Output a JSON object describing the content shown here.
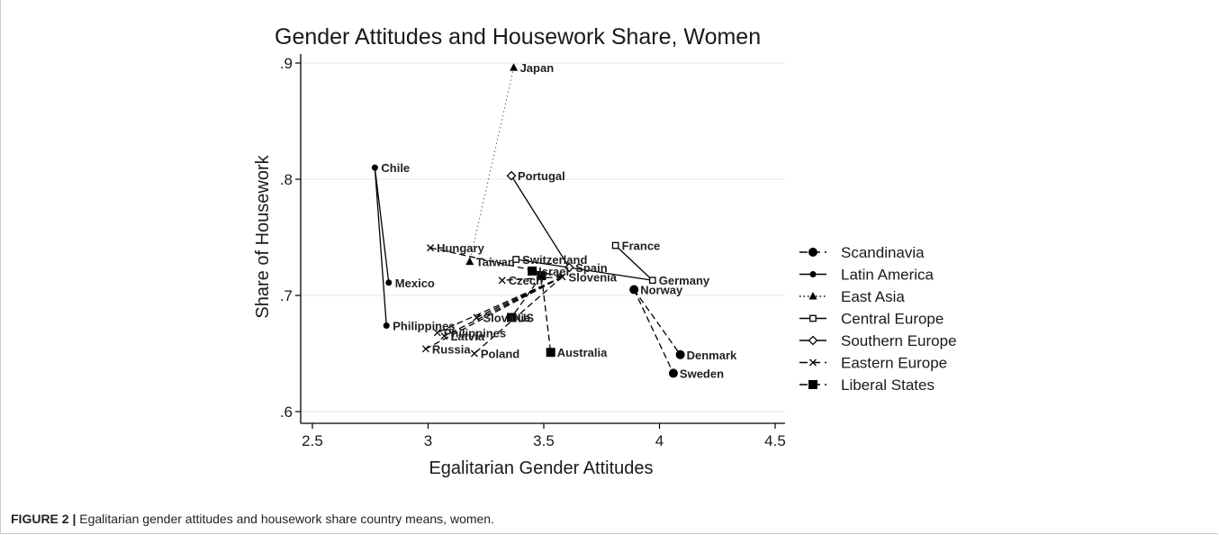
{
  "chart_data": {
    "type": "scatter",
    "title": "Gender Attitudes and Housework Share, Women",
    "xlabel": "Egalitarian Gender Attitudes",
    "ylabel": "Share of Housework",
    "xlim": [
      2.5,
      4.5
    ],
    "ylim": [
      0.6,
      0.9
    ],
    "xticks": [
      "2.5",
      "3",
      "3.5",
      "4",
      "4.5"
    ],
    "yticks": [
      ".6",
      ".7",
      ".8",
      ".9"
    ],
    "xtick_values": [
      2.5,
      3,
      3.5,
      4,
      4.5
    ],
    "ytick_values": [
      0.6,
      0.7,
      0.8,
      0.9
    ],
    "grid": "horizontal",
    "legend_position": "right",
    "series": [
      {
        "name": "Scandinavia",
        "marker": "circle-large",
        "line": "dash",
        "color": "#000000",
        "points": [
          {
            "label": "Norway",
            "x": 3.89,
            "y": 0.705
          },
          {
            "label": "Denmark",
            "x": 4.09,
            "y": 0.649
          },
          {
            "label": "Sweden",
            "x": 4.06,
            "y": 0.633
          }
        ],
        "lines": [
          [
            0,
            1
          ],
          [
            0,
            2
          ]
        ]
      },
      {
        "name": "Latin America",
        "marker": "circle-small",
        "line": "solid",
        "color": "#000000",
        "points": [
          {
            "label": "Chile",
            "x": 2.77,
            "y": 0.81
          },
          {
            "label": "Mexico",
            "x": 2.83,
            "y": 0.711
          },
          {
            "label": "Philippines",
            "x": 2.82,
            "y": 0.674
          }
        ],
        "lines": [
          [
            0,
            1
          ],
          [
            0,
            2
          ]
        ]
      },
      {
        "name": "East Asia",
        "marker": "triangle",
        "line": "dot",
        "color": "#000000",
        "points": [
          {
            "label": "Japan",
            "x": 3.37,
            "y": 0.896
          },
          {
            "label": "Taiwan",
            "x": 3.18,
            "y": 0.729
          }
        ],
        "lines": [
          [
            0,
            1
          ]
        ]
      },
      {
        "name": "Central Europe",
        "marker": "square-hollow",
        "line": "solid",
        "color": "#000000",
        "points": [
          {
            "label": "France",
            "x": 3.81,
            "y": 0.743
          },
          {
            "label": "Switzerland",
            "x": 3.38,
            "y": 0.731
          },
          {
            "label": "Germany",
            "x": 3.97,
            "y": 0.713
          }
        ],
        "lines": [
          [
            2,
            0
          ],
          [
            2,
            1
          ]
        ]
      },
      {
        "name": "Southern Europe",
        "marker": "diamond-hollow",
        "line": "solid",
        "color": "#000000",
        "points": [
          {
            "label": "Portugal",
            "x": 3.36,
            "y": 0.803
          },
          {
            "label": "Spain",
            "x": 3.61,
            "y": 0.724
          }
        ],
        "lines": [
          [
            0,
            1
          ]
        ]
      },
      {
        "name": "Eastern Europe",
        "marker": "x",
        "line": "dash",
        "color": "#000000",
        "points": [
          {
            "label": "Hungary",
            "x": 3.01,
            "y": 0.741
          },
          {
            "label": "Czech",
            "x": 3.32,
            "y": 0.713
          },
          {
            "label": "Slovenia",
            "x": 3.58,
            "y": 0.716
          },
          {
            "label": "Slovakia",
            "x": 3.21,
            "y": 0.681
          },
          {
            "label": "Latvia",
            "x": 3.07,
            "y": 0.665
          },
          {
            "label": "Philippines",
            "x": 3.04,
            "y": 0.668
          },
          {
            "label": "Russia",
            "x": 2.99,
            "y": 0.654
          },
          {
            "label": "Poland",
            "x": 3.2,
            "y": 0.65
          }
        ],
        "lines": [
          [
            2,
            0
          ],
          [
            2,
            1
          ],
          [
            2,
            3
          ],
          [
            2,
            4
          ],
          [
            2,
            5
          ],
          [
            2,
            6
          ],
          [
            2,
            7
          ]
        ]
      },
      {
        "name": "Liberal States",
        "marker": "square",
        "line": "dash",
        "color": "#000000",
        "points": [
          {
            "label": "Israel",
            "x": 3.45,
            "y": 0.721
          },
          {
            "label": "US",
            "x": 3.36,
            "y": 0.681
          },
          {
            "label": "Australia",
            "x": 3.53,
            "y": 0.651
          },
          {
            "label": "",
            "x": 3.49,
            "y": 0.717
          }
        ],
        "lines": [
          [
            3,
            0
          ],
          [
            3,
            1
          ],
          [
            3,
            2
          ]
        ]
      }
    ]
  },
  "caption": {
    "label": "FIGURE 2 |",
    "text": " Egalitarian gender attitudes and housework share country means, women."
  }
}
